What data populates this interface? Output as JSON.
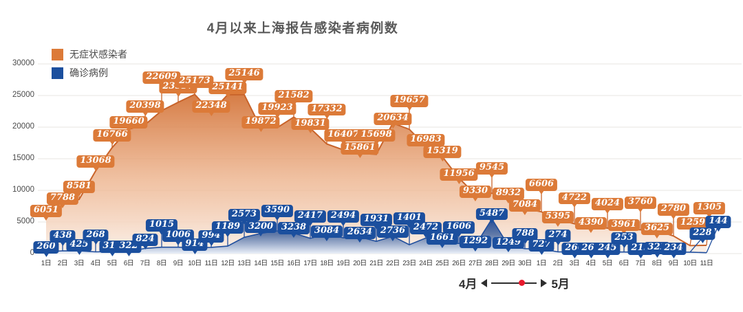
{
  "title": "4月以来上海报告感染者病例数",
  "legend": {
    "items": [
      {
        "label": "无症状感染者",
        "color": "#DC7A38"
      },
      {
        "label": "确诊病例",
        "color": "#1B4F9E"
      }
    ]
  },
  "y_axis": {
    "ticks": [
      "0",
      "5000",
      "10000",
      "15000",
      "20000",
      "25000",
      "30000"
    ]
  },
  "footer": {
    "left_month": "4月",
    "right_month": "5月",
    "dot_color": "#E8192C"
  },
  "chart_data": {
    "type": "area",
    "title": "4月以来上海报告感染者病例数",
    "xlabel": "",
    "ylabel": "",
    "ylim": [
      0,
      30000
    ],
    "y_tick_step": 5000,
    "grid": true,
    "legend_position": "top-left",
    "categories": [
      "1日",
      "2日",
      "3日",
      "4日",
      "5日",
      "6日",
      "7日",
      "8日",
      "9日",
      "10日",
      "11日",
      "12日",
      "13日",
      "14日",
      "15日",
      "16日",
      "17日",
      "18日",
      "19日",
      "20日",
      "21日",
      "22日",
      "23日",
      "24日",
      "25日",
      "26日",
      "27日",
      "28日",
      "29日",
      "30日",
      "1日",
      "2日",
      "3日",
      "4日",
      "5日",
      "6日",
      "7日",
      "8日",
      "9日",
      "10日",
      "11日"
    ],
    "x_groups": [
      {
        "month": "4月",
        "count": 30
      },
      {
        "month": "5月",
        "count": 11
      }
    ],
    "series": [
      {
        "name": "无症状感染者",
        "color": "#DC7A38",
        "line_color": "#C8632A",
        "values": [
          6051,
          7788,
          8581,
          13068,
          16766,
          19660,
          20398,
          22609,
          23937,
          25173,
          22348,
          25141,
          25146,
          19872,
          19923,
          21582,
          19831,
          17332,
          16407,
          15861,
          15698,
          20634,
          19657,
          16983,
          15319,
          11956,
          9330,
          9545,
          8932,
          7084,
          6606,
          5395,
          4722,
          4390,
          4024,
          3961,
          3760,
          3625,
          2780,
          1259,
          1305
        ]
      },
      {
        "name": "确诊病例",
        "color": "#1B4F9E",
        "line_color": "#1F4E9D",
        "values": [
          260,
          438,
          425,
          268,
          311,
          322,
          824,
          1015,
          1006,
          914,
          994,
          1189,
          2573,
          3200,
          3590,
          3238,
          2417,
          3084,
          2494,
          2634,
          1931,
          2736,
          1401,
          2472,
          1661,
          1606,
          1292,
          5487,
          1249,
          788,
          727,
          274,
          260,
          261,
          245,
          253,
          215,
          322,
          234,
          228,
          144
        ]
      }
    ]
  }
}
